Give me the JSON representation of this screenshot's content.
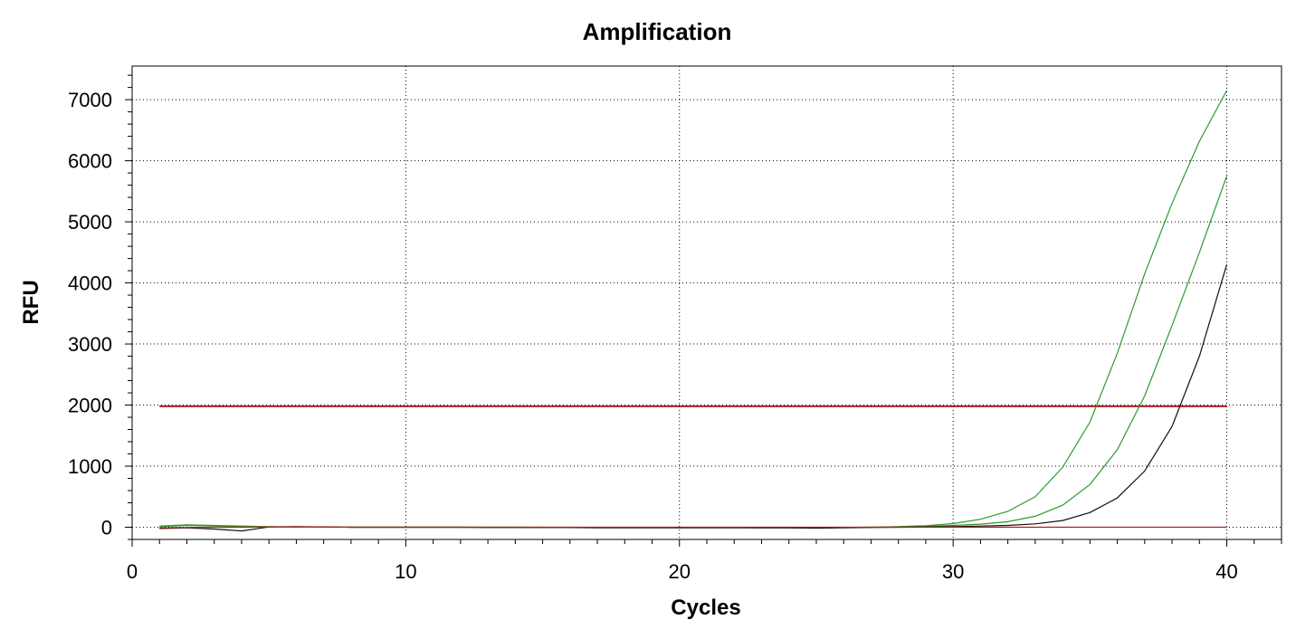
{
  "chart_data": {
    "type": "line",
    "title": "Amplification",
    "xlabel": "Cycles",
    "ylabel": "RFU",
    "xlim": [
      0,
      42
    ],
    "ylim": [
      -200,
      7550
    ],
    "xticks": [
      0,
      10,
      20,
      30,
      40
    ],
    "yticks": [
      0,
      1000,
      2000,
      3000,
      4000,
      5000,
      6000,
      7000
    ],
    "grid": true,
    "threshold": {
      "value": 1980,
      "x_range": [
        1,
        40
      ],
      "color": "#b01c1c"
    },
    "x": [
      1,
      2,
      3,
      4,
      5,
      6,
      7,
      8,
      9,
      10,
      11,
      12,
      13,
      14,
      15,
      16,
      17,
      18,
      19,
      20,
      21,
      22,
      23,
      24,
      25,
      26,
      27,
      28,
      29,
      30,
      31,
      32,
      33,
      34,
      35,
      36,
      37,
      38,
      39,
      40
    ],
    "series": [
      {
        "color": "#2e9a2e",
        "values": [
          20,
          40,
          30,
          20,
          10,
          5,
          5,
          0,
          0,
          0,
          0,
          0,
          0,
          0,
          0,
          -5,
          -5,
          -5,
          -5,
          -5,
          -5,
          -5,
          -5,
          -10,
          -10,
          -5,
          0,
          10,
          25,
          60,
          130,
          260,
          500,
          980,
          1720,
          2850,
          4150,
          5300,
          6320,
          7150
        ]
      },
      {
        "color": "#2e9a2e",
        "values": [
          10,
          30,
          20,
          10,
          5,
          5,
          5,
          0,
          0,
          0,
          0,
          0,
          0,
          0,
          -5,
          -5,
          -5,
          -5,
          -5,
          -5,
          -5,
          -5,
          -10,
          -10,
          -10,
          -5,
          0,
          5,
          15,
          30,
          50,
          90,
          180,
          360,
          700,
          1270,
          2150,
          3300,
          4500,
          5750
        ]
      },
      {
        "color": "#111111",
        "values": [
          -20,
          -10,
          -30,
          -60,
          5,
          10,
          5,
          0,
          0,
          0,
          0,
          0,
          -5,
          -5,
          -5,
          -5,
          -10,
          -10,
          -10,
          -10,
          -10,
          -10,
          -10,
          -10,
          -15,
          -10,
          -5,
          0,
          5,
          10,
          20,
          30,
          55,
          110,
          240,
          480,
          920,
          1650,
          2800,
          4300
        ]
      },
      {
        "color": "#b01c1c",
        "values": [
          -10,
          -5,
          0,
          0,
          5,
          5,
          5,
          0,
          0,
          0,
          0,
          0,
          0,
          0,
          0,
          0,
          0,
          0,
          0,
          0,
          0,
          0,
          0,
          0,
          0,
          0,
          0,
          0,
          0,
          0,
          0,
          0,
          0,
          0,
          0,
          0,
          0,
          0,
          0,
          0
        ]
      }
    ]
  }
}
